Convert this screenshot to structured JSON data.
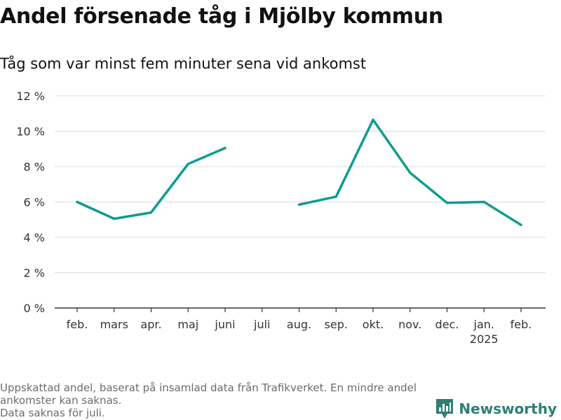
{
  "header": {
    "title": "Andel försenade tåg i Mjölby kommun",
    "subtitle": "Tåg som var minst fem minuter sena vid ankomst"
  },
  "footnote": {
    "line1": "Uppskattad andel, baserat på insamlad data från Trafikverket. En mindre andel ankomster kan saknas.",
    "line2": "Data saknas för juli."
  },
  "brand": {
    "name": "Newsworthy",
    "color": "#2f7f73"
  },
  "chart_data": {
    "type": "line",
    "categories": [
      "feb.",
      "mars",
      "apr.",
      "maj",
      "juni",
      "juli",
      "aug.",
      "sep.",
      "okt.",
      "nov.",
      "dec.",
      "jan.",
      "feb."
    ],
    "year_label": {
      "index": 11,
      "text": "2025"
    },
    "series": [
      {
        "values": [
          6.0,
          5.05,
          5.4,
          8.15,
          9.05,
          null,
          5.85,
          6.3,
          10.65,
          7.65,
          5.95,
          6.0,
          4.7
        ],
        "color": "#0f9b91"
      }
    ],
    "yticks": [
      0,
      2,
      4,
      6,
      8,
      10,
      12
    ],
    "ytick_labels": [
      "0 %",
      "2 %",
      "4 %",
      "6 %",
      "8 %",
      "10 %",
      "12 %"
    ],
    "ylim": [
      0,
      12
    ],
    "grid": true
  }
}
